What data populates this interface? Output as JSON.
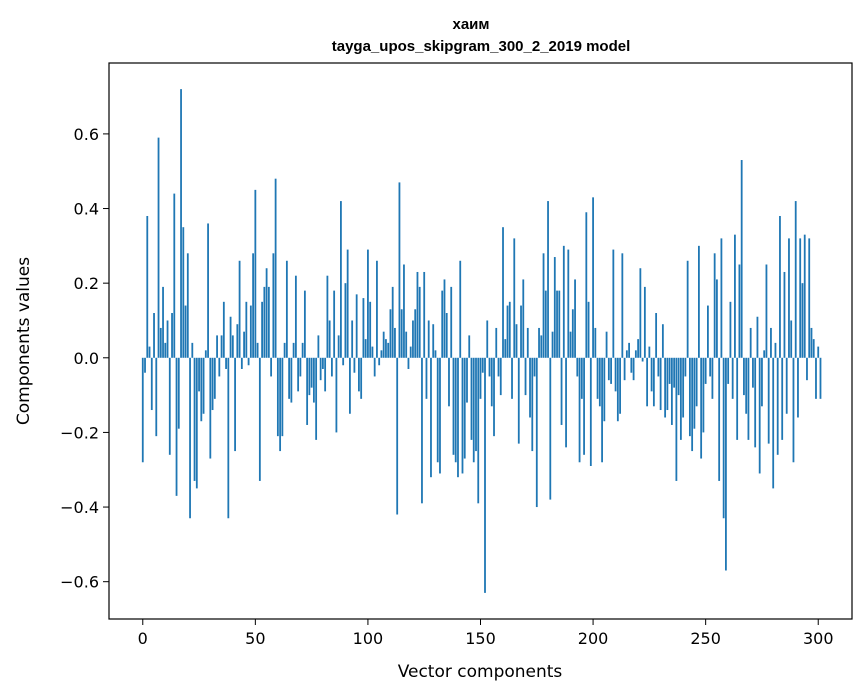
{
  "chart_data": {
    "type": "bar",
    "title_line1": "хаим",
    "title_line2": "tayga_upos_skipgram_300_2_2019 model",
    "xlabel": "Vector components",
    "ylabel": "Components values",
    "xlim": [
      -15,
      315
    ],
    "ylim": [
      -0.7,
      0.79
    ],
    "x_ticks": [
      0,
      50,
      100,
      150,
      200,
      250,
      300
    ],
    "y_ticks": [
      -0.6,
      -0.4,
      -0.2,
      0.0,
      0.2,
      0.4,
      0.6
    ],
    "bar_color": "#1f77b4",
    "values": [
      -0.28,
      -0.04,
      0.38,
      0.03,
      -0.14,
      0.12,
      -0.21,
      0.59,
      0.08,
      0.19,
      0.04,
      0.1,
      -0.26,
      0.12,
      0.44,
      -0.37,
      -0.19,
      0.72,
      0.35,
      0.14,
      0.28,
      -0.43,
      0.04,
      -0.33,
      -0.35,
      -0.09,
      -0.17,
      -0.15,
      0.02,
      0.36,
      -0.27,
      -0.14,
      -0.11,
      0.06,
      -0.05,
      0.06,
      0.15,
      -0.03,
      -0.43,
      0.11,
      0.06,
      -0.25,
      0.09,
      0.26,
      -0.03,
      0.07,
      0.15,
      -0.02,
      0.14,
      0.28,
      0.45,
      0.04,
      -0.33,
      0.15,
      0.19,
      0.24,
      0.19,
      -0.05,
      0.28,
      0.48,
      -0.21,
      -0.25,
      -0.21,
      0.04,
      0.26,
      -0.11,
      -0.12,
      0.04,
      0.22,
      -0.09,
      -0.05,
      0.04,
      0.18,
      -0.18,
      -0.1,
      -0.08,
      -0.12,
      -0.22,
      0.06,
      -0.06,
      -0.03,
      -0.09,
      0.22,
      0.1,
      -0.05,
      0.18,
      -0.2,
      0.06,
      0.42,
      -0.02,
      0.2,
      0.29,
      -0.15,
      0.1,
      -0.04,
      0.17,
      -0.09,
      -0.11,
      0.16,
      0.05,
      0.29,
      0.15,
      0.03,
      -0.05,
      0.26,
      -0.02,
      0.02,
      0.07,
      0.05,
      0.04,
      0.13,
      0.19,
      0.08,
      -0.42,
      0.47,
      0.13,
      0.25,
      0.07,
      -0.03,
      0.03,
      0.1,
      0.13,
      0.23,
      0.19,
      -0.39,
      0.23,
      -0.11,
      0.1,
      -0.32,
      0.09,
      0.02,
      -0.28,
      -0.31,
      0.18,
      0.21,
      0.12,
      -0.13,
      0.19,
      -0.26,
      -0.28,
      -0.32,
      0.26,
      -0.31,
      -0.27,
      -0.12,
      0.06,
      -0.22,
      -0.28,
      -0.25,
      -0.39,
      -0.11,
      -0.04,
      -0.63,
      0.1,
      -0.05,
      -0.13,
      -0.21,
      0.08,
      -0.05,
      -0.1,
      0.35,
      0.05,
      0.14,
      0.15,
      -0.11,
      0.32,
      0.09,
      -0.23,
      0.14,
      0.21,
      -0.1,
      0.08,
      -0.16,
      -0.25,
      -0.05,
      -0.4,
      0.08,
      0.06,
      0.28,
      0.18,
      0.42,
      -0.38,
      0.07,
      0.27,
      0.18,
      0.18,
      -0.18,
      0.3,
      -0.24,
      0.29,
      0.07,
      0.13,
      0.21,
      -0.05,
      -0.28,
      -0.11,
      -0.26,
      0.39,
      0.15,
      -0.29,
      0.43,
      0.08,
      -0.11,
      -0.13,
      -0.28,
      -0.17,
      0.07,
      -0.06,
      -0.07,
      0.29,
      -0.09,
      -0.17,
      -0.15,
      0.28,
      -0.06,
      0.02,
      0.04,
      -0.04,
      -0.06,
      0.02,
      0.05,
      0.24,
      -0.01,
      0.19,
      -0.13,
      0.03,
      -0.09,
      -0.13,
      0.12,
      -0.05,
      -0.14,
      0.09,
      -0.16,
      -0.14,
      -0.07,
      -0.18,
      -0.08,
      -0.33,
      -0.1,
      -0.22,
      -0.16,
      -0.05,
      0.26,
      -0.21,
      -0.25,
      -0.19,
      -0.13,
      0.3,
      -0.27,
      -0.2,
      -0.07,
      0.14,
      -0.05,
      -0.11,
      0.28,
      0.21,
      -0.33,
      0.32,
      -0.43,
      -0.57,
      -0.07,
      0.15,
      -0.11,
      0.33,
      -0.22,
      0.25,
      0.53,
      -0.1,
      -0.15,
      -0.22,
      0.08,
      -0.08,
      -0.24,
      0.11,
      -0.31,
      -0.13,
      0.02,
      0.25,
      -0.23,
      0.08,
      -0.35,
      0.04,
      -0.26,
      0.38,
      -0.22,
      0.23,
      -0.15,
      0.32,
      0.1,
      -0.28,
      0.42,
      -0.16,
      0.32,
      0.2,
      0.33,
      -0.06,
      0.32,
      0.08,
      0.05,
      -0.11,
      0.03,
      -0.11
    ]
  }
}
